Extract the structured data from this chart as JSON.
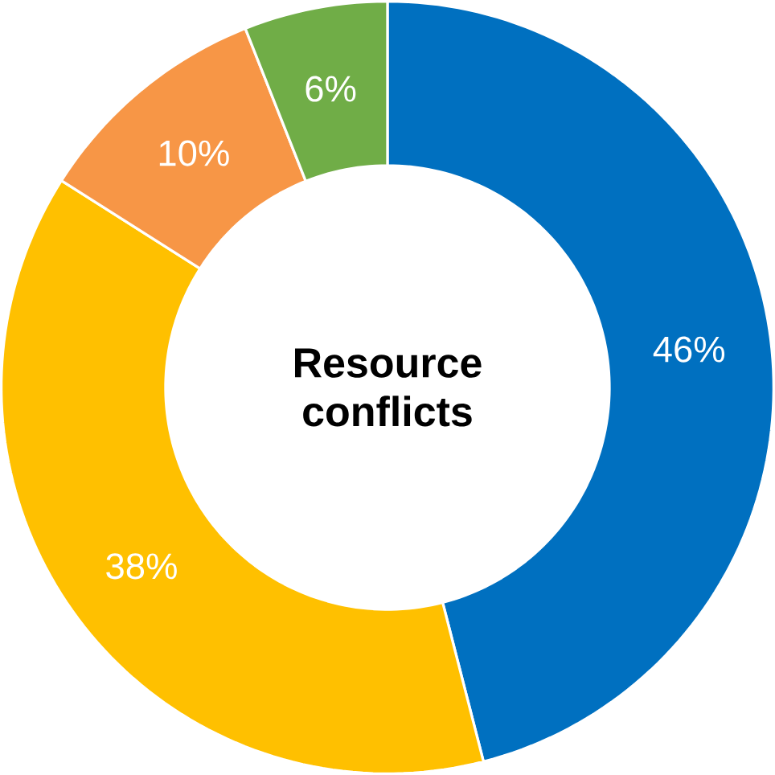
{
  "chart_data": {
    "type": "donut",
    "title": "Resource conflicts",
    "categories": [
      null,
      null,
      null,
      null
    ],
    "values": [
      46,
      38,
      10,
      6
    ],
    "colors": [
      "#0070c0",
      "#ffc000",
      "#f79646",
      "#70ad47"
    ],
    "value_labels": [
      "46%",
      "38%",
      "10%",
      "6%"
    ]
  }
}
